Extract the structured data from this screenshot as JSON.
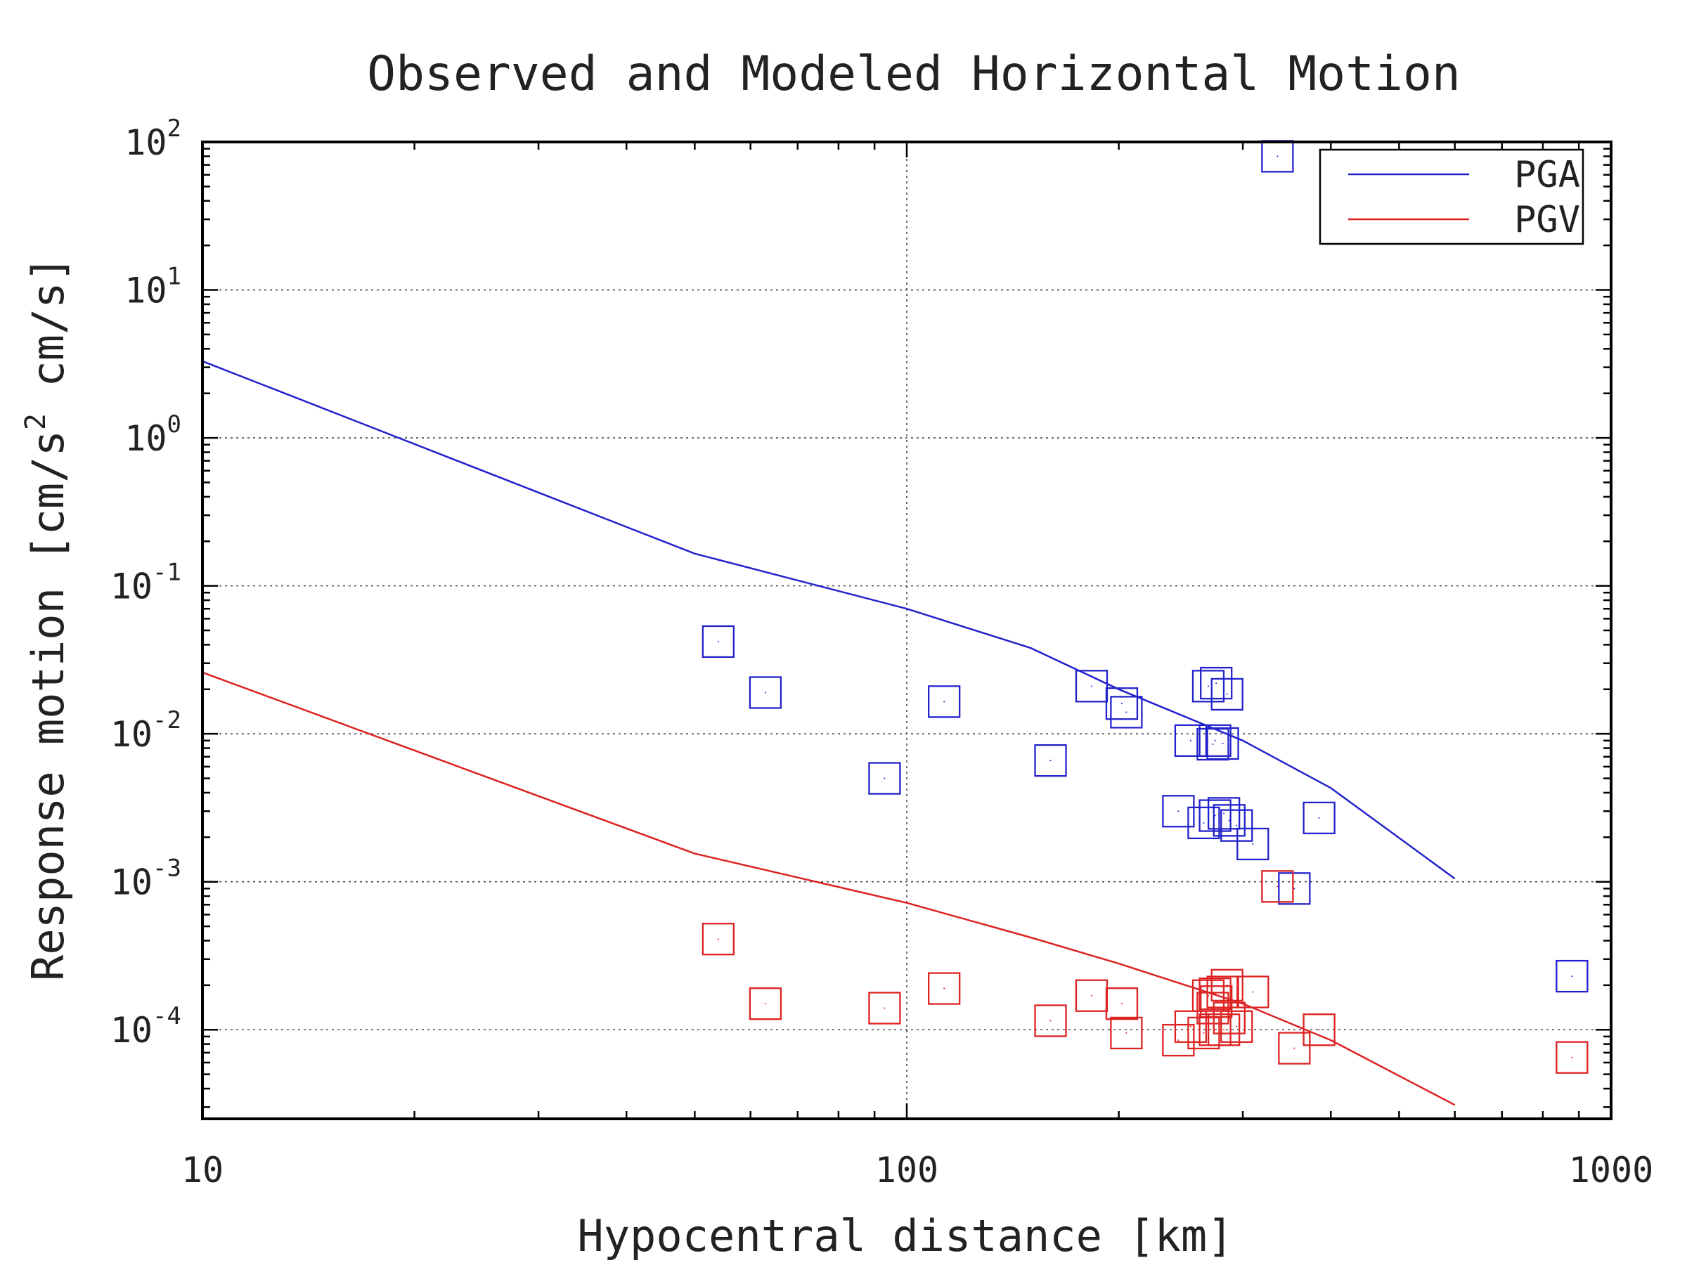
{
  "chart_data": {
    "type": "scatter",
    "title": "Observed and Modeled Horizontal Motion",
    "xlabel": "Hypocentral distance [km]",
    "ylabel_parts": [
      "Response motion  [cm/s",
      "2",
      "  cm/s]"
    ],
    "xscale": "log",
    "yscale": "log",
    "xlim": [
      10,
      1000
    ],
    "ylim": [
      2.5e-05,
      100
    ],
    "x_ticks": [
      {
        "value": 10,
        "label": "10"
      },
      {
        "value": 100,
        "label": "100"
      },
      {
        "value": 1000,
        "label": "1000"
      }
    ],
    "y_ticks": [
      {
        "value": 0.0001,
        "base": "10",
        "exp": "-4"
      },
      {
        "value": 0.001,
        "base": "10",
        "exp": "-3"
      },
      {
        "value": 0.01,
        "base": "10",
        "exp": "-2"
      },
      {
        "value": 0.1,
        "base": "10",
        "exp": "-1"
      },
      {
        "value": 1,
        "base": "10",
        "exp": "0"
      },
      {
        "value": 10,
        "base": "10",
        "exp": "1"
      },
      {
        "value": 100,
        "base": "10",
        "exp": "2"
      }
    ],
    "grid": true,
    "legend_position": "top-right",
    "series": [
      {
        "name": "PGA",
        "color": "#2222cc",
        "curve": {
          "x": [
            10,
            50,
            100,
            150,
            200,
            300,
            400,
            600
          ],
          "y": [
            3.3,
            0.165,
            0.07,
            0.038,
            0.02,
            0.009,
            0.0043,
            0.00105
          ]
        },
        "points": {
          "x": [
            54,
            63,
            93,
            113,
            160,
            183,
            202,
            205,
            243,
            253,
            268,
            272,
            275,
            274,
            281,
            285,
            282,
            274,
            264,
            287,
            294,
            310,
            355,
            385,
            880,
            336
          ],
          "y": [
            0.042,
            0.019,
            0.005,
            0.0165,
            0.0066,
            0.021,
            0.016,
            0.014,
            0.003,
            0.009,
            0.021,
            0.0085,
            0.022,
            0.009,
            0.0086,
            0.0185,
            0.0029,
            0.0028,
            0.0025,
            0.0026,
            0.0024,
            0.0018,
            0.0009,
            0.0027,
            0.00023,
            80
          ]
        }
      },
      {
        "name": "PGV",
        "color": "#dd2222",
        "curve": {
          "x": [
            10,
            50,
            100,
            150,
            200,
            300,
            400,
            600
          ],
          "y": [
            0.026,
            0.00155,
            0.00072,
            0.00042,
            0.00028,
            0.00015,
            8.5e-05,
            3.1e-05
          ]
        },
        "points": {
          "x": [
            54,
            63,
            93,
            113,
            160,
            183,
            202,
            205,
            243,
            253,
            268,
            272,
            275,
            274,
            281,
            285,
            282,
            274,
            264,
            287,
            294,
            310,
            355,
            385,
            880,
            336
          ],
          "y": [
            0.00041,
            0.00015,
            0.00014,
            0.00019,
            0.000115,
            0.00017,
            0.00015,
            9.5e-05,
            8.5e-05,
            0.000105,
            0.00017,
            0.00014,
            0.000155,
            0.000175,
            0.00018,
            0.0002,
            0.0001,
            0.0001,
            9.5e-05,
            0.00012,
            0.000105,
            0.00018,
            7.5e-05,
            0.0001,
            6.5e-05,
            0.00093
          ]
        }
      }
    ]
  }
}
